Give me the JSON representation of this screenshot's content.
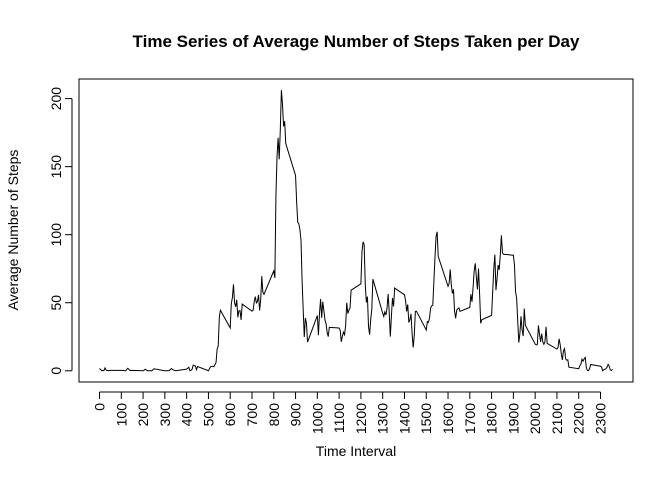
{
  "chart_data": {
    "type": "line",
    "title": "Time Series of Average Number of Steps Taken per Day",
    "x_label": "Time Interval",
    "y_label": "Average Number of Steps",
    "color": "#000000",
    "x": [
      0,
      10,
      20,
      25,
      30,
      40,
      50,
      100,
      110,
      120,
      125,
      130,
      140,
      150,
      200,
      210,
      220,
      230,
      240,
      250,
      300,
      310,
      320,
      330,
      340,
      350,
      400,
      410,
      415,
      420,
      425,
      430,
      440,
      445,
      450,
      500,
      510,
      520,
      525,
      535,
      540,
      545,
      550,
      555,
      600,
      605,
      610,
      615,
      620,
      625,
      630,
      635,
      640,
      645,
      650,
      655,
      700,
      705,
      710,
      715,
      720,
      725,
      730,
      735,
      740,
      745,
      750,
      755,
      800,
      805,
      810,
      815,
      820,
      825,
      830,
      835,
      840,
      845,
      850,
      855,
      900,
      905,
      910,
      915,
      920,
      925,
      930,
      935,
      940,
      945,
      950,
      955,
      1000,
      1005,
      1010,
      1015,
      1020,
      1025,
      1030,
      1035,
      1040,
      1045,
      1050,
      1055,
      1100,
      1105,
      1110,
      1115,
      1120,
      1125,
      1130,
      1135,
      1140,
      1145,
      1150,
      1155,
      1200,
      1205,
      1210,
      1215,
      1220,
      1225,
      1230,
      1235,
      1240,
      1245,
      1250,
      1255,
      1300,
      1305,
      1310,
      1315,
      1320,
      1325,
      1330,
      1335,
      1340,
      1345,
      1350,
      1355,
      1400,
      1405,
      1410,
      1415,
      1420,
      1425,
      1430,
      1435,
      1440,
      1445,
      1450,
      1455,
      1500,
      1505,
      1510,
      1515,
      1520,
      1525,
      1530,
      1535,
      1540,
      1545,
      1550,
      1555,
      1600,
      1605,
      1610,
      1615,
      1620,
      1625,
      1630,
      1635,
      1640,
      1645,
      1650,
      1655,
      1700,
      1705,
      1710,
      1715,
      1720,
      1725,
      1730,
      1735,
      1740,
      1745,
      1750,
      1755,
      1800,
      1805,
      1810,
      1815,
      1820,
      1825,
      1830,
      1835,
      1840,
      1845,
      1850,
      1855,
      1900,
      1905,
      1910,
      1915,
      1920,
      1925,
      1930,
      1935,
      1940,
      1945,
      1950,
      1955,
      2000,
      2005,
      2010,
      2015,
      2020,
      2025,
      2030,
      2035,
      2040,
      2045,
      2050,
      2055,
      2100,
      2105,
      2110,
      2115,
      2120,
      2125,
      2130,
      2135,
      2140,
      2145,
      2150,
      2155,
      2200,
      2205,
      2210,
      2215,
      2220,
      2225,
      2230,
      2235,
      2240,
      2245,
      2250,
      2255,
      2300,
      2305,
      2310,
      2315,
      2320,
      2325,
      2330,
      2335,
      2340,
      2345,
      2350,
      2355
    ],
    "values": [
      1.7,
      0.1,
      0.1,
      2.1,
      0.5,
      0,
      0.3,
      0.3,
      0.2,
      0,
      1.1,
      1.8,
      0.2,
      0.3,
      0,
      1.1,
      0,
      0,
      0,
      1.5,
      0,
      0,
      0.2,
      1.6,
      0.5,
      0,
      1.2,
      2.6,
      0,
      0.3,
      1.1,
      4.1,
      3.5,
      0.8,
      3.1,
      0,
      3.0,
      3.3,
      3.0,
      6.1,
      16.0,
      18.3,
      39.5,
      44.5,
      31.5,
      49.3,
      53.8,
      63.5,
      50.0,
      47.1,
      52.2,
      39.3,
      44.0,
      44.2,
      37.4,
      49.0,
      43.8,
      44.4,
      50.5,
      54.5,
      49.9,
      51.0,
      55.7,
      44.3,
      52.3,
      69.5,
      57.8,
      56.2,
      73.4,
      68.2,
      129.4,
      157.5,
      171.2,
      155.4,
      177.3,
      206.2,
      195.9,
      179.6,
      183.4,
      167.0,
      143.5,
      124.0,
      109.1,
      108.1,
      103.7,
      96.0,
      66.2,
      45.2,
      24.8,
      38.8,
      35.0,
      21.1,
      40.6,
      26.1,
      42.4,
      52.7,
      38.9,
      50.8,
      44.3,
      37.4,
      34.7,
      28.3,
      25.1,
      31.9,
      31.4,
      29.7,
      21.3,
      25.5,
      28.4,
      26.5,
      33.4,
      50.0,
      42.0,
      44.6,
      46.0,
      59.2,
      63.9,
      87.7,
      94.8,
      92.8,
      63.4,
      50.2,
      54.5,
      32.4,
      26.5,
      37.7,
      45.1,
      67.3,
      42.3,
      39.9,
      43.3,
      41.0,
      46.2,
      56.4,
      42.8,
      25.1,
      39.9,
      53.5,
      47.3,
      60.8,
      55.8,
      51.9,
      43.6,
      48.7,
      35.5,
      37.5,
      41.8,
      27.5,
      17.1,
      26.1,
      43.6,
      43.8,
      30.0,
      36.1,
      35.5,
      38.8,
      46.0,
      47.8,
      48.1,
      65.3,
      82.9,
      98.7,
      102.1,
      84.0,
      62.1,
      64.1,
      74.5,
      63.2,
      56.9,
      59.8,
      43.9,
      38.6,
      44.7,
      45.5,
      46.2,
      43.7,
      46.6,
      56.3,
      50.7,
      61.2,
      73.4,
      79.0,
      68.9,
      59.7,
      75.1,
      56.5,
      34.8,
      37.5,
      40.7,
      58.0,
      74.7,
      85.3,
      59.3,
      67.8,
      77.7,
      74.2,
      85.3,
      99.5,
      86.6,
      85.6,
      84.9,
      77.8,
      58.0,
      53.4,
      36.3,
      20.7,
      27.4,
      40.0,
      30.2,
      25.5,
      45.7,
      33.5,
      19.6,
      19.0,
      19.3,
      33.3,
      26.8,
      21.2,
      27.3,
      21.3,
      19.5,
      21.3,
      32.3,
      20.2,
      15.9,
      17.2,
      23.5,
      19.2,
      12.5,
      8.0,
      14.7,
      16.3,
      8.7,
      7.8,
      8.1,
      2.6,
      1.5,
      3.7,
      4.8,
      8.5,
      7.1,
      8.7,
      9.8,
      2.2,
      0.3,
      0.1,
      1.6,
      4.6,
      3.3,
      2.8,
      0,
      0.8,
      1.0,
      1.6,
      2.6,
      4.7,
      3.3,
      0.6,
      0.2,
      1.1
    ],
    "xlim": [
      -94.2,
      2449.2
    ],
    "xticks": [
      0,
      100,
      200,
      300,
      400,
      500,
      600,
      700,
      800,
      900,
      1000,
      1100,
      1200,
      1300,
      1400,
      1500,
      1600,
      1700,
      1800,
      1900,
      2000,
      2100,
      2200,
      2300
    ],
    "ylim": [
      -8.25,
      214.4
    ],
    "yticks": [
      0,
      50,
      100,
      150,
      200
    ],
    "grid": false
  }
}
